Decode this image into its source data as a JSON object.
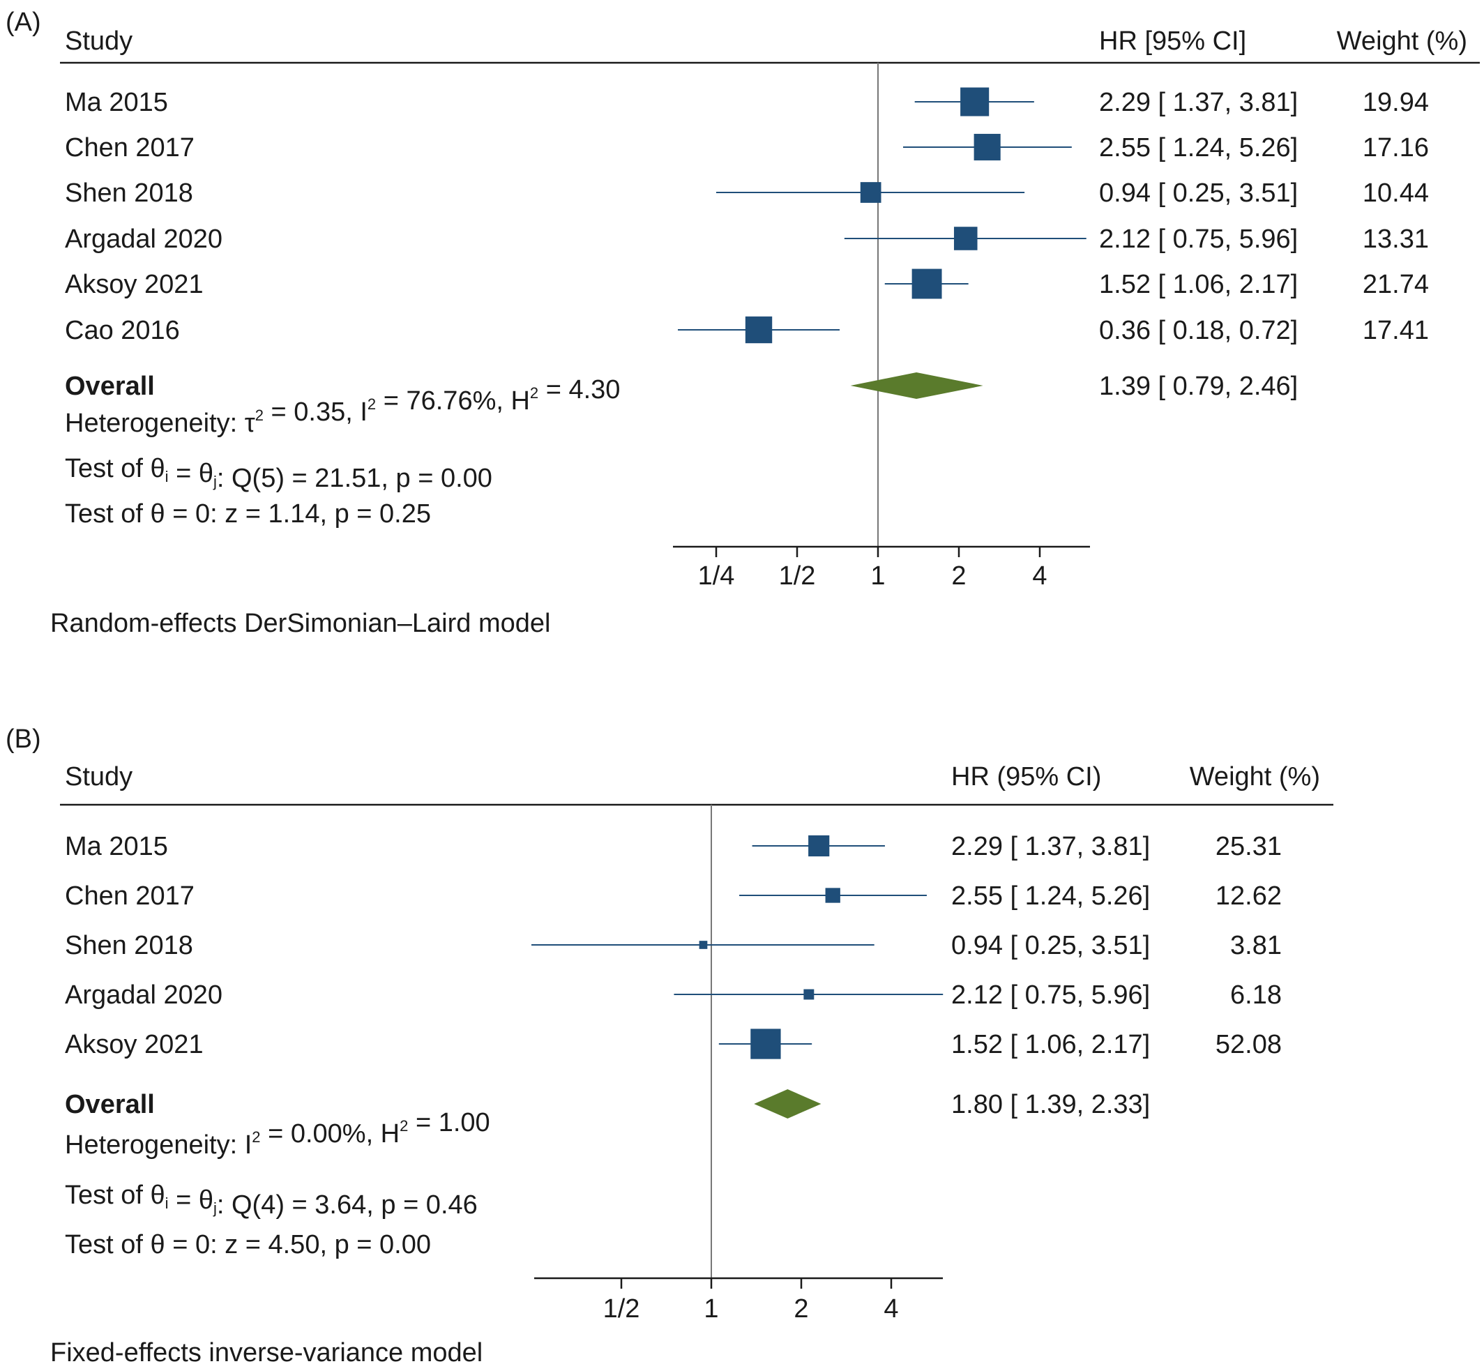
{
  "chart_data": [
    {
      "type": "forest",
      "panel_label": "(A)",
      "headers": {
        "study": "Study",
        "ci": "HR [95% CI]",
        "weight": "Weight (%)"
      },
      "x_scale": "log2",
      "xlim": [
        0.18,
        5.96
      ],
      "ticks": [
        0.25,
        0.5,
        1,
        2,
        4
      ],
      "tick_labels": [
        "1/4",
        "1/2",
        "1",
        "2",
        "4"
      ],
      "reference_line": 1,
      "studies": [
        {
          "name": "Ma 2015",
          "hr": 2.29,
          "lo": 1.37,
          "hi": 3.81,
          "weight": 19.94,
          "ci_text": "2.29 [ 1.37,  3.81]",
          "weight_text": "19.94"
        },
        {
          "name": "Chen 2017",
          "hr": 2.55,
          "lo": 1.24,
          "hi": 5.26,
          "weight": 17.16,
          "ci_text": "2.55 [ 1.24,  5.26]",
          "weight_text": "17.16"
        },
        {
          "name": "Shen 2018",
          "hr": 0.94,
          "lo": 0.25,
          "hi": 3.51,
          "weight": 10.44,
          "ci_text": "0.94 [ 0.25,  3.51]",
          "weight_text": "10.44"
        },
        {
          "name": "Argadal 2020",
          "hr": 2.12,
          "lo": 0.75,
          "hi": 5.96,
          "weight": 13.31,
          "ci_text": "2.12 [ 0.75,  5.96]",
          "weight_text": "13.31"
        },
        {
          "name": "Aksoy 2021",
          "hr": 1.52,
          "lo": 1.06,
          "hi": 2.17,
          "weight": 21.74,
          "ci_text": "1.52 [ 1.06,  2.17]",
          "weight_text": "21.74"
        },
        {
          "name": "Cao 2016",
          "hr": 0.36,
          "lo": 0.18,
          "hi": 0.72,
          "weight": 17.41,
          "ci_text": "0.36 [ 0.18,  0.72]",
          "weight_text": "17.41"
        }
      ],
      "overall": {
        "label": "Overall",
        "hr": 1.39,
        "lo": 0.79,
        "hi": 2.46,
        "ci_text": "1.39 [ 0.79,  2.46]"
      },
      "stats": [
        [
          {
            "t": "Heterogeneity: τ"
          },
          {
            "t": "2",
            "sup": true
          },
          {
            "t": " = 0.35, I"
          },
          {
            "t": "2",
            "sup": true
          },
          {
            "t": " = 76.76%, H"
          },
          {
            "t": "2",
            "sup": true
          },
          {
            "t": " = 4.30"
          }
        ],
        [
          {
            "t": "Test of θ"
          },
          {
            "t": "i",
            "sub": true
          },
          {
            "t": " = θ"
          },
          {
            "t": "j",
            "sub": true
          },
          {
            "t": ": Q(5) = 21.51, p = 0.00"
          }
        ],
        [
          {
            "t": "Test of θ = 0: z = 1.14, p = 0.25"
          }
        ]
      ],
      "model_note": "Random-effects DerSimonian–Laird model"
    },
    {
      "type": "forest",
      "panel_label": "(B)",
      "headers": {
        "study": "Study",
        "ci": "HR (95% CI)",
        "weight": "Weight (%)"
      },
      "x_scale": "log2",
      "xlim": [
        0.25,
        5.96
      ],
      "ticks": [
        0.5,
        1,
        2,
        4
      ],
      "tick_labels": [
        "1/2",
        "1",
        "2",
        "4"
      ],
      "reference_line": 1,
      "studies": [
        {
          "name": "Ma 2015",
          "hr": 2.29,
          "lo": 1.37,
          "hi": 3.81,
          "weight": 25.31,
          "ci_text": "2.29 [ 1.37,  3.81]",
          "weight_text": "25.31"
        },
        {
          "name": "Chen 2017",
          "hr": 2.55,
          "lo": 1.24,
          "hi": 5.26,
          "weight": 12.62,
          "ci_text": "2.55 [ 1.24,  5.26]",
          "weight_text": "12.62"
        },
        {
          "name": "Shen 2018",
          "hr": 0.94,
          "lo": 0.25,
          "hi": 3.51,
          "weight": 3.81,
          "ci_text": "0.94 [ 0.25,  3.51]",
          "weight_text": "3.81"
        },
        {
          "name": "Argadal 2020",
          "hr": 2.12,
          "lo": 0.75,
          "hi": 5.96,
          "weight": 6.18,
          "ci_text": "2.12 [ 0.75,  5.96]",
          "weight_text": "6.18"
        },
        {
          "name": "Aksoy 2021",
          "hr": 1.52,
          "lo": 1.06,
          "hi": 2.17,
          "weight": 52.08,
          "ci_text": "1.52 [ 1.06,  2.17]",
          "weight_text": "52.08"
        }
      ],
      "overall": {
        "label": "Overall",
        "hr": 1.8,
        "lo": 1.39,
        "hi": 2.33,
        "ci_text": "1.80 [ 1.39,  2.33]"
      },
      "stats": [
        [
          {
            "t": "Heterogeneity: I"
          },
          {
            "t": "2",
            "sup": true
          },
          {
            "t": " = 0.00%, H"
          },
          {
            "t": "2",
            "sup": true
          },
          {
            "t": " = 1.00"
          }
        ],
        [
          {
            "t": "Test of θ"
          },
          {
            "t": "i",
            "sub": true
          },
          {
            "t": " = θ"
          },
          {
            "t": "j",
            "sub": true
          },
          {
            "t": ": Q(4) = 3.64, p = 0.46"
          }
        ],
        [
          {
            "t": "Test of θ = 0: z = 4.50, p = 0.00"
          }
        ]
      ],
      "model_note": "Fixed-effects inverse-variance model"
    }
  ],
  "colors": {
    "marker": "#1f4e79",
    "diamond": "#5a7b2c",
    "text": "#1a1a1a",
    "ref_line": "#777777",
    "axis": "#1a1a1a"
  }
}
